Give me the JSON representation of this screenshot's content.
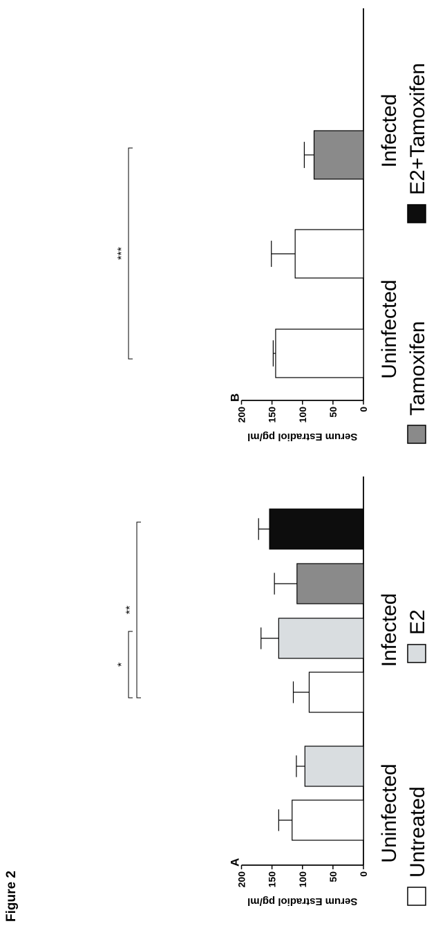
{
  "figure_label": "Figure 2",
  "chart_data": [
    {
      "type": "bar",
      "panel": "A",
      "title": "",
      "ylabel": "Serum Estradiol pg/ml",
      "ylim": [
        0,
        200
      ],
      "yticks": [
        0,
        50,
        100,
        150,
        200
      ],
      "groups": [
        "Uninfected",
        "Infected"
      ],
      "bars": [
        {
          "group": "Uninfected",
          "series": "Untreated",
          "value": 117,
          "error": 22
        },
        {
          "group": "Uninfected",
          "series": "E2",
          "value": 96,
          "error": 14
        },
        {
          "group": "Infected",
          "series": "Untreated",
          "value": 89,
          "error": 26
        },
        {
          "group": "Infected",
          "series": "E2",
          "value": 139,
          "error": 29
        },
        {
          "group": "Infected",
          "series": "Tamoxifen",
          "value": 109,
          "error": 37
        },
        {
          "group": "Infected",
          "series": "E2+Tamoxifen",
          "value": 154,
          "error": 18
        }
      ],
      "significance": [
        {
          "from": "Infected Untreated",
          "to": "Infected E2",
          "label": "*"
        },
        {
          "from": "Infected Untreated",
          "to": "Infected E2+Tamoxifen",
          "label": "**"
        }
      ]
    },
    {
      "type": "bar",
      "panel": "B",
      "title": "",
      "ylabel": "Serum Estradiol pg/ml",
      "ylim": [
        0,
        200
      ],
      "yticks": [
        0,
        50,
        100,
        150,
        200
      ],
      "groups": [
        "Uninfected",
        "Infected"
      ],
      "bars": [
        {
          "group": "Uninfected",
          "series": "Untreated",
          "value": 144,
          "error": 4
        },
        {
          "group": "Infected",
          "series": "Untreated",
          "value": 112,
          "error": 39
        },
        {
          "group": "Infected",
          "series": "Tamoxifen",
          "value": 81,
          "error": 16
        }
      ],
      "significance": [
        {
          "from": "Uninfected Untreated",
          "to": "Infected Tamoxifen",
          "label": "***"
        }
      ]
    }
  ],
  "legend": [
    {
      "label": "Untreated",
      "color": "#ffffff"
    },
    {
      "label": "E2",
      "color": "#d9dde0"
    },
    {
      "label": "Tamoxifen",
      "color": "#8a8a8a"
    },
    {
      "label": "E2+Tamoxifen",
      "color": "#0d0d0d"
    }
  ]
}
